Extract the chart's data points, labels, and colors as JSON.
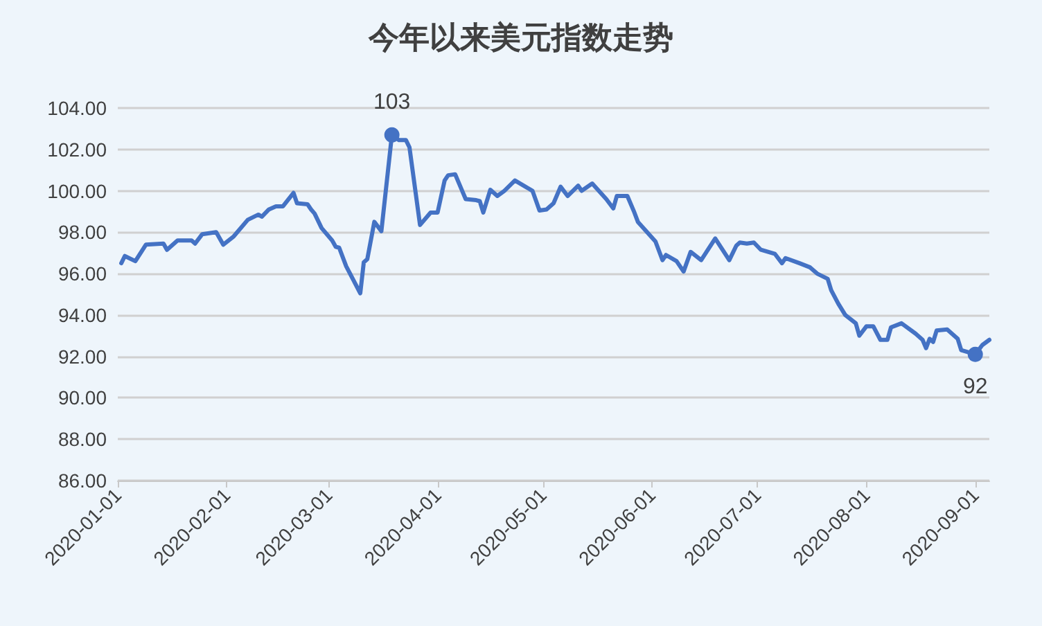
{
  "chart_data": {
    "type": "line",
    "title": "今年以来美元指数走势",
    "x": [
      "2020-01-02",
      "2020-01-03",
      "2020-01-06",
      "2020-01-09",
      "2020-01-14",
      "2020-01-15",
      "2020-01-18",
      "2020-01-22",
      "2020-01-23",
      "2020-01-25",
      "2020-01-29",
      "2020-01-31",
      "2020-02-03",
      "2020-02-07",
      "2020-02-10",
      "2020-02-11",
      "2020-02-13",
      "2020-02-15",
      "2020-02-17",
      "2020-02-20",
      "2020-02-21",
      "2020-02-24",
      "2020-02-25",
      "2020-02-26",
      "2020-02-28",
      "2020-03-02",
      "2020-03-03",
      "2020-03-04",
      "2020-03-06",
      "2020-03-10",
      "2020-03-11",
      "2020-03-12",
      "2020-03-14",
      "2020-03-16",
      "2020-03-19",
      "2020-03-21",
      "2020-03-23",
      "2020-03-24",
      "2020-03-27",
      "2020-03-30",
      "2020-04-01",
      "2020-04-03",
      "2020-04-04",
      "2020-04-06",
      "2020-04-08",
      "2020-04-09",
      "2020-04-12",
      "2020-04-13",
      "2020-04-14",
      "2020-04-16",
      "2020-04-18",
      "2020-04-20",
      "2020-04-23",
      "2020-04-26",
      "2020-04-28",
      "2020-04-30",
      "2020-05-02",
      "2020-05-04",
      "2020-05-06",
      "2020-05-08",
      "2020-05-11",
      "2020-05-12",
      "2020-05-15",
      "2020-05-19",
      "2020-05-21",
      "2020-05-22",
      "2020-05-25",
      "2020-05-27",
      "2020-05-28",
      "2020-06-02",
      "2020-06-03",
      "2020-06-04",
      "2020-06-05",
      "2020-06-08",
      "2020-06-10",
      "2020-06-12",
      "2020-06-15",
      "2020-06-19",
      "2020-06-23",
      "2020-06-25",
      "2020-06-26",
      "2020-06-28",
      "2020-06-30",
      "2020-07-02",
      "2020-07-06",
      "2020-07-08",
      "2020-07-09",
      "2020-07-13",
      "2020-07-16",
      "2020-07-18",
      "2020-07-21",
      "2020-07-22",
      "2020-07-24",
      "2020-07-26",
      "2020-07-29",
      "2020-07-30",
      "2020-08-01",
      "2020-08-03",
      "2020-08-05",
      "2020-08-07",
      "2020-08-08",
      "2020-08-11",
      "2020-08-15",
      "2020-08-17",
      "2020-08-18",
      "2020-08-19",
      "2020-08-20",
      "2020-08-21",
      "2020-08-24",
      "2020-08-26",
      "2020-08-27",
      "2020-08-28",
      "2020-09-01",
      "2020-09-03",
      "2020-09-05"
    ],
    "values": [
      96.5,
      96.85,
      96.6,
      97.4,
      97.45,
      97.15,
      97.6,
      97.6,
      97.45,
      97.9,
      98.0,
      97.4,
      97.8,
      98.6,
      98.85,
      98.75,
      99.1,
      99.25,
      99.25,
      99.9,
      99.4,
      99.35,
      99.1,
      98.9,
      98.2,
      97.6,
      97.3,
      97.25,
      96.35,
      95.05,
      96.55,
      96.7,
      98.5,
      98.05,
      102.7,
      102.45,
      102.45,
      102.1,
      98.35,
      98.95,
      98.95,
      100.5,
      100.75,
      100.8,
      100.0,
      99.6,
      99.55,
      99.5,
      98.95,
      100.05,
      99.75,
      100.0,
      100.5,
      100.2,
      100.0,
      99.05,
      99.1,
      99.4,
      100.2,
      99.75,
      100.25,
      100.0,
      100.35,
      99.6,
      99.15,
      99.75,
      99.75,
      98.95,
      98.5,
      97.55,
      97.1,
      96.65,
      96.9,
      96.6,
      96.1,
      97.05,
      96.65,
      97.7,
      96.65,
      97.35,
      97.5,
      97.45,
      97.5,
      97.15,
      96.95,
      96.5,
      96.75,
      96.5,
      96.3,
      96.0,
      95.75,
      95.2,
      94.55,
      94.0,
      93.6,
      93.0,
      93.45,
      93.45,
      92.8,
      92.8,
      93.4,
      93.6,
      93.1,
      92.8,
      92.4,
      92.85,
      92.7,
      93.25,
      93.3,
      93.0,
      92.85,
      92.3,
      92.1,
      92.55,
      92.8
    ],
    "value_labels": [
      null,
      null,
      null,
      null,
      null,
      null,
      null,
      null,
      null,
      null,
      null,
      null,
      null,
      null,
      null,
      null,
      null,
      null,
      null,
      null,
      null,
      null,
      null,
      null,
      null,
      null,
      null,
      null,
      null,
      null,
      null,
      null,
      null,
      null,
      "103",
      null,
      null,
      null,
      null,
      null,
      null,
      null,
      null,
      null,
      null,
      null,
      null,
      null,
      null,
      null,
      null,
      null,
      null,
      null,
      null,
      null,
      null,
      null,
      null,
      null,
      null,
      null,
      null,
      null,
      null,
      null,
      null,
      null,
      null,
      null,
      null,
      null,
      null,
      null,
      null,
      null,
      null,
      null,
      null,
      null,
      null,
      null,
      null,
      null,
      null,
      null,
      null,
      null,
      null,
      null,
      null,
      null,
      null,
      null,
      null,
      null,
      null,
      null,
      null,
      null,
      null,
      null,
      null,
      null,
      null,
      null,
      null,
      null,
      null,
      null,
      null,
      null,
      "92",
      null,
      null
    ],
    "color": "#4472c4",
    "xlim": [
      "2020-01-01",
      "2020-09-05"
    ],
    "xticks": [
      "2020-01-01",
      "2020-02-01",
      "2020-03-01",
      "2020-04-01",
      "2020-05-01",
      "2020-06-01",
      "2020-07-01",
      "2020-08-01",
      "2020-09-01"
    ],
    "ylim": [
      86,
      104
    ],
    "yticks": [
      {
        "value": 86,
        "label": "86.00"
      },
      {
        "value": 88,
        "label": "88.00"
      },
      {
        "value": 90,
        "label": "90.00"
      },
      {
        "value": 92,
        "label": "92.00"
      },
      {
        "value": 94,
        "label": "94.00"
      },
      {
        "value": 96,
        "label": "96.00"
      },
      {
        "value": 98,
        "label": "98.00"
      },
      {
        "value": 100,
        "label": "100.00"
      },
      {
        "value": 102,
        "label": "102.00"
      },
      {
        "value": 104,
        "label": "104.00"
      }
    ],
    "grid": "y"
  }
}
